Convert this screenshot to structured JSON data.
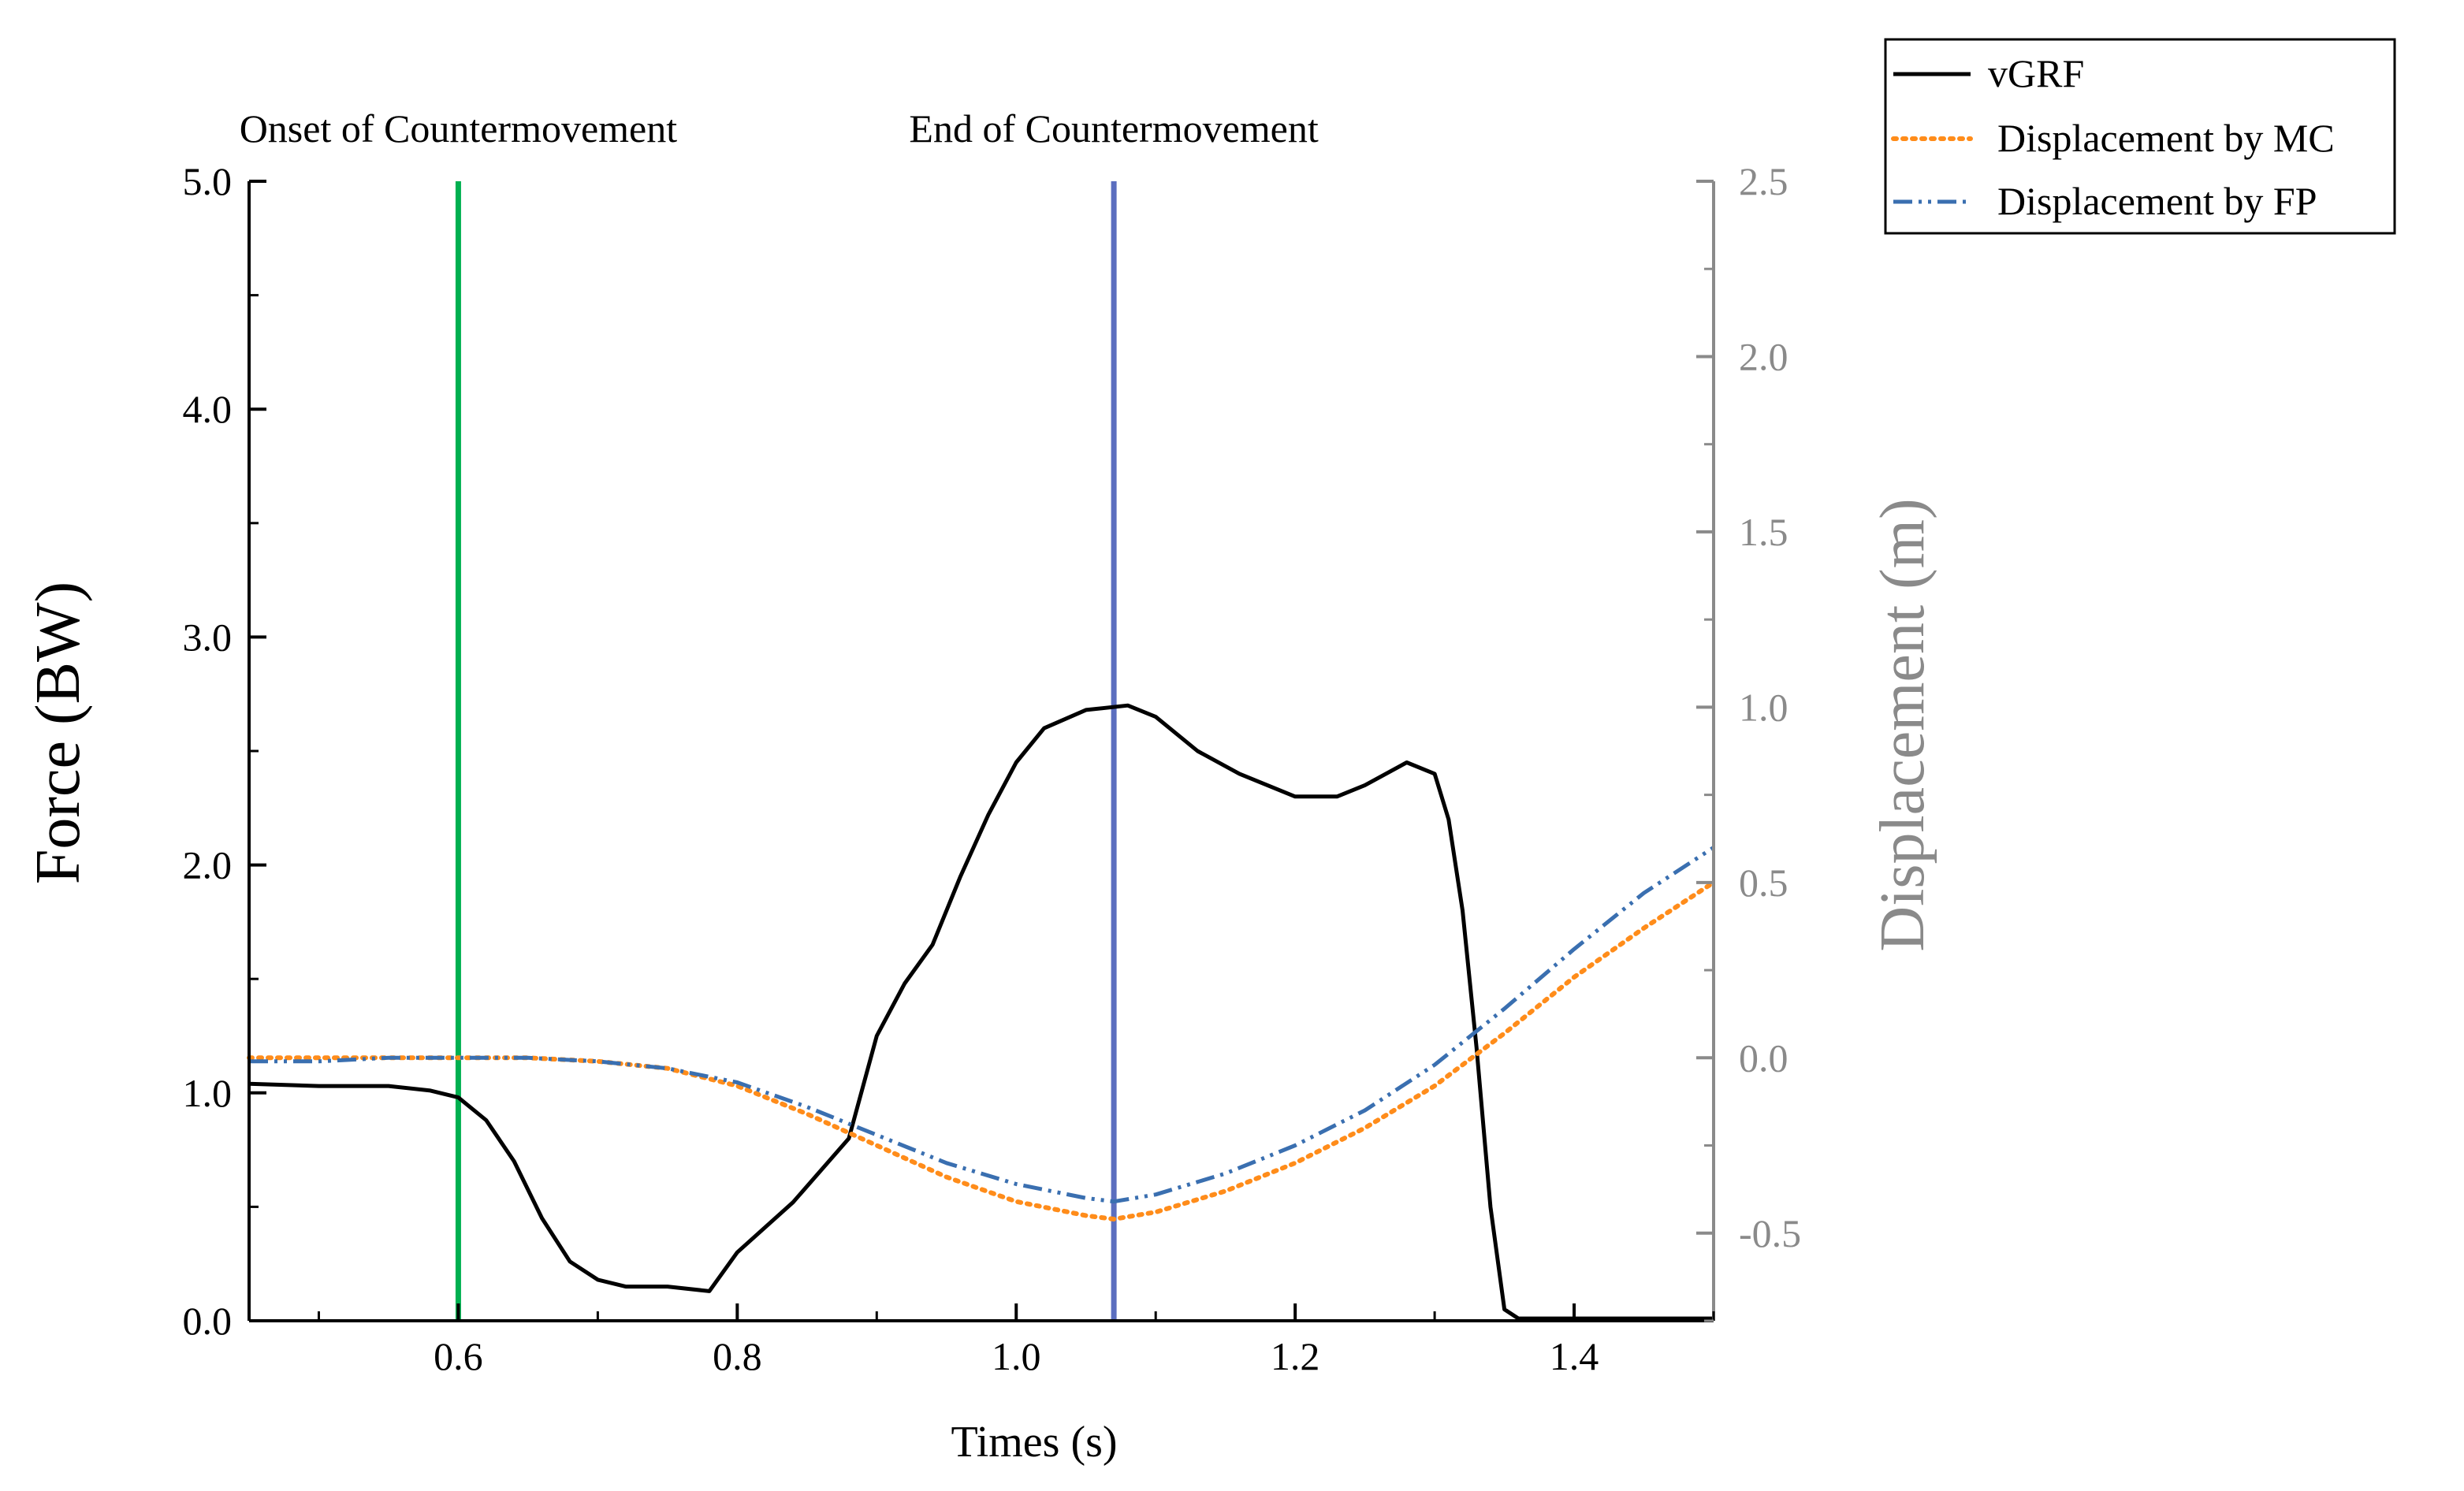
{
  "chart_data": {
    "type": "line",
    "title": "",
    "xlabel": "Times (s)",
    "ylabel_left": "Force (BW)",
    "ylabel_right": "Displacement (m)",
    "xlim": [
      0.45,
      1.5
    ],
    "ylim_left": [
      0,
      5
    ],
    "ylim_right": [
      -0.75,
      2.5
    ],
    "x_ticks": [
      {
        "value": 0.6,
        "label": "0.6"
      },
      {
        "value": 0.8,
        "label": "0.8"
      },
      {
        "value": 1.0,
        "label": "1.0"
      },
      {
        "value": 1.2,
        "label": "1.2"
      },
      {
        "value": 1.4,
        "label": "1.4"
      }
    ],
    "left_ticks": [
      {
        "value": 0,
        "label": "0.0"
      },
      {
        "value": 1,
        "label": "1.0"
      },
      {
        "value": 2,
        "label": "2.0"
      },
      {
        "value": 3,
        "label": "3.0"
      },
      {
        "value": 4,
        "label": "4.0"
      },
      {
        "value": 5,
        "label": "5.0"
      }
    ],
    "right_ticks": [
      {
        "value": -0.5,
        "label": "-0.5"
      },
      {
        "value": 0.0,
        "label": "0.0"
      },
      {
        "value": 0.5,
        "label": "0.5"
      },
      {
        "value": 1.0,
        "label": "1.0"
      },
      {
        "value": 1.5,
        "label": "1.5"
      },
      {
        "value": 2.0,
        "label": "2.0"
      },
      {
        "value": 2.5,
        "label": "2.5"
      }
    ],
    "grid": false,
    "legend_position": "top-right, outside plot",
    "legend": [
      {
        "name": "vGRF",
        "style": "solid",
        "color": "#000000"
      },
      {
        "name": "Displacement by MC",
        "style": "dotted",
        "color": "#FF8C1A"
      },
      {
        "name": "Displacement by FP",
        "style": "dash-dot-dot",
        "color": "#3A6FB0"
      }
    ],
    "annotations": [
      {
        "x": 0.6,
        "label": "Onset of Countermovement",
        "color": "#00B050"
      },
      {
        "x": 1.07,
        "label": "End of Countermovement",
        "color": "#5B6EBF"
      }
    ],
    "series": [
      {
        "name": "vGRF",
        "axis": "left",
        "color": "#000000",
        "x": [
          0.45,
          0.5,
          0.55,
          0.58,
          0.6,
          0.62,
          0.64,
          0.66,
          0.68,
          0.7,
          0.72,
          0.75,
          0.78,
          0.8,
          0.84,
          0.88,
          0.9,
          0.92,
          0.94,
          0.96,
          0.98,
          1.0,
          1.02,
          1.05,
          1.08,
          1.1,
          1.13,
          1.16,
          1.2,
          1.23,
          1.25,
          1.28,
          1.3,
          1.31,
          1.32,
          1.33,
          1.34,
          1.35,
          1.36,
          1.4,
          1.45,
          1.5
        ],
        "values": [
          1.04,
          1.03,
          1.03,
          1.01,
          0.98,
          0.88,
          0.7,
          0.45,
          0.26,
          0.18,
          0.15,
          0.15,
          0.13,
          0.3,
          0.52,
          0.8,
          1.25,
          1.48,
          1.65,
          1.95,
          2.22,
          2.45,
          2.6,
          2.68,
          2.7,
          2.65,
          2.5,
          2.4,
          2.3,
          2.3,
          2.35,
          2.45,
          2.4,
          2.2,
          1.8,
          1.2,
          0.5,
          0.05,
          0.01,
          0.01,
          0.01,
          0.01
        ]
      },
      {
        "name": "Displacement by MC",
        "axis": "right",
        "color": "#FF8C1A",
        "x": [
          0.45,
          0.5,
          0.55,
          0.6,
          0.65,
          0.7,
          0.75,
          0.8,
          0.85,
          0.9,
          0.95,
          1.0,
          1.05,
          1.07,
          1.1,
          1.15,
          1.2,
          1.25,
          1.3,
          1.35,
          1.4,
          1.45,
          1.5
        ],
        "values": [
          0.0,
          0.0,
          0.0,
          0.0,
          0.0,
          -0.01,
          -0.03,
          -0.08,
          -0.16,
          -0.25,
          -0.34,
          -0.41,
          -0.45,
          -0.46,
          -0.44,
          -0.38,
          -0.3,
          -0.2,
          -0.08,
          0.07,
          0.23,
          0.37,
          0.5
        ]
      },
      {
        "name": "Displacement by FP",
        "axis": "right",
        "color": "#3A6FB0",
        "x": [
          0.45,
          0.5,
          0.55,
          0.6,
          0.65,
          0.7,
          0.75,
          0.8,
          0.85,
          0.9,
          0.95,
          1.0,
          1.05,
          1.07,
          1.1,
          1.15,
          1.2,
          1.25,
          1.3,
          1.35,
          1.4,
          1.45,
          1.5
        ],
        "values": [
          -0.01,
          -0.01,
          0.0,
          0.0,
          0.0,
          -0.01,
          -0.03,
          -0.07,
          -0.14,
          -0.22,
          -0.3,
          -0.36,
          -0.4,
          -0.41,
          -0.39,
          -0.33,
          -0.25,
          -0.15,
          -0.02,
          0.14,
          0.31,
          0.47,
          0.6
        ]
      }
    ]
  }
}
